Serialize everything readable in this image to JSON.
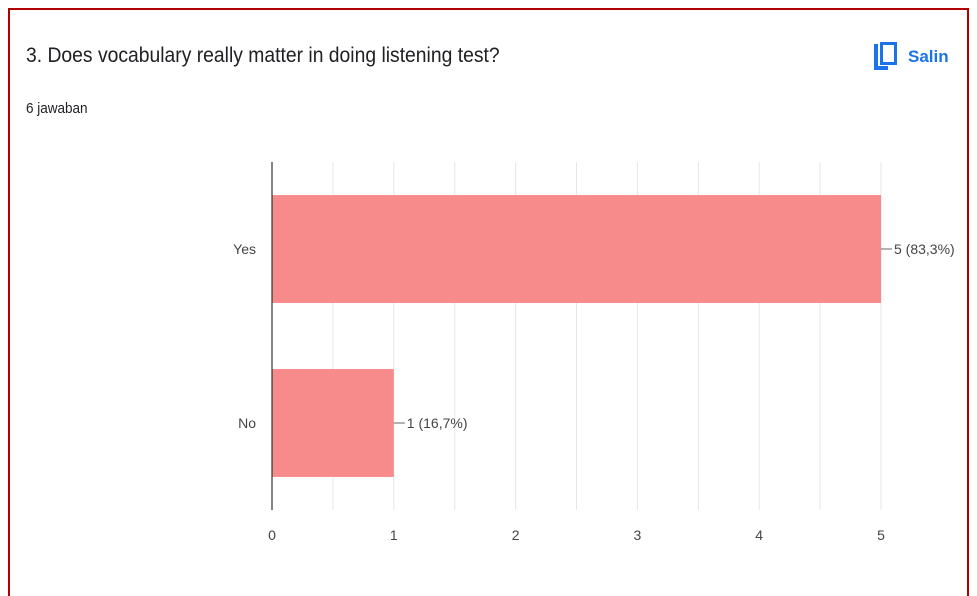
{
  "question": {
    "title": "3. Does vocabulary really matter in doing listening test?",
    "response_count": "6 jawaban"
  },
  "copy_button": {
    "label": "Salin",
    "icon": "copy-icon"
  },
  "colors": {
    "bar": "#f78a8a",
    "accent": "#1a73e8",
    "frame": "#b00000"
  },
  "chart_data": {
    "type": "bar",
    "orientation": "horizontal",
    "categories": [
      "Yes",
      "No"
    ],
    "values": [
      5,
      1
    ],
    "data_labels": [
      "5 (83,3%)",
      "1 (16,7%)"
    ],
    "xlim": [
      0,
      5
    ],
    "x_ticks": [
      "0",
      "1",
      "2",
      "3",
      "4",
      "5"
    ],
    "grid": true
  }
}
